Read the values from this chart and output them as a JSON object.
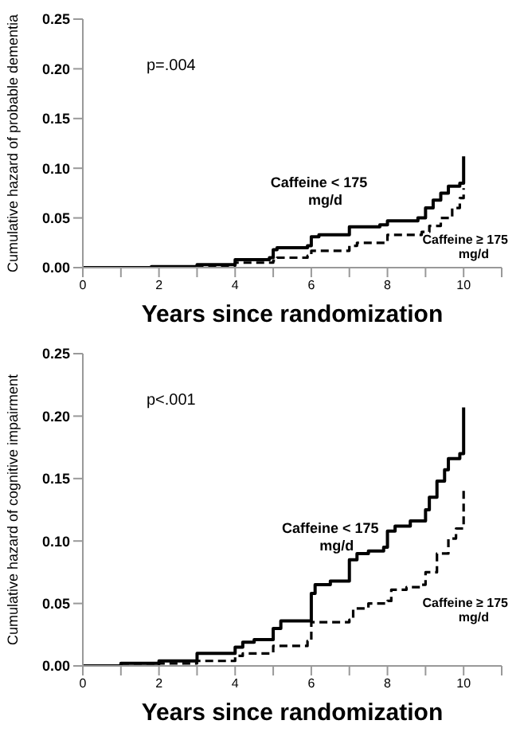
{
  "chart_data": [
    {
      "type": "step",
      "xlabel": "Years  since  randomization",
      "ylabel": "Cumulative hazard of probable dementia",
      "annotations": [
        "p=.004"
      ],
      "xlim": [
        0,
        11
      ],
      "xticks": [
        0,
        {
          "value": 1,
          "label": null
        },
        2,
        {
          "value": 3,
          "label": null
        },
        4,
        {
          "value": 5,
          "label": null
        },
        6,
        {
          "value": 7,
          "label": null
        },
        8,
        {
          "value": 9,
          "label": null
        },
        10,
        {
          "value": 11,
          "label": null
        }
      ],
      "ylim": [
        0,
        0.25
      ],
      "yticks": [
        {
          "value": 0,
          "label": "0.00"
        },
        {
          "value": 0.05,
          "label": "0.05"
        },
        {
          "value": 0.1,
          "label": "0.10"
        },
        {
          "value": 0.15,
          "label": "0.15"
        },
        {
          "value": 0.2,
          "label": "0.20"
        },
        {
          "value": 0.25,
          "label": "0.25"
        }
      ],
      "grid": false,
      "legend": false,
      "marker": "none",
      "series": [
        {
          "name": "Caffeine < 175 mg/d",
          "color": "#000000",
          "line_style": "solid",
          "x": [
            0,
            1.8,
            3,
            4,
            4.9,
            5,
            5.1,
            5.9,
            6,
            6.2,
            7,
            7.8,
            8,
            8.8,
            9,
            9.2,
            9.4,
            9.6,
            9.9,
            10
          ],
          "values": [
            0,
            0.001,
            0.003,
            0.008,
            0.01,
            0.018,
            0.02,
            0.022,
            0.031,
            0.033,
            0.041,
            0.043,
            0.047,
            0.05,
            0.06,
            0.068,
            0.075,
            0.082,
            0.085,
            0.112
          ]
        },
        {
          "name": "Caffeine ≥ 175 mg/d",
          "color": "#000000",
          "line_style": "dashed",
          "x": [
            0,
            3,
            4,
            5,
            5.1,
            5.9,
            6,
            7,
            7.2,
            8,
            8.9,
            9.1,
            9.4,
            9.7,
            9.9,
            10
          ],
          "values": [
            0,
            0.002,
            0.005,
            0.007,
            0.01,
            0.012,
            0.017,
            0.022,
            0.025,
            0.033,
            0.036,
            0.042,
            0.05,
            0.06,
            0.07,
            0.08
          ]
        }
      ]
    },
    {
      "type": "step",
      "xlabel": "Years  since  randomization",
      "ylabel": "Cumulative hazard of cognitive impairment",
      "annotations": [
        "p<.001"
      ],
      "xlim": [
        0,
        11
      ],
      "xticks": [
        0,
        {
          "value": 1,
          "label": null
        },
        2,
        {
          "value": 3,
          "label": null
        },
        4,
        {
          "value": 5,
          "label": null
        },
        6,
        {
          "value": 7,
          "label": null
        },
        8,
        {
          "value": 9,
          "label": null
        },
        10,
        {
          "value": 11,
          "label": null
        }
      ],
      "ylim": [
        0,
        0.25
      ],
      "yticks": [
        {
          "value": 0,
          "label": "0.00"
        },
        {
          "value": 0.05,
          "label": "0.05"
        },
        {
          "value": 0.1,
          "label": "0.10"
        },
        {
          "value": 0.15,
          "label": "0.15"
        },
        {
          "value": 0.2,
          "label": "0.20"
        },
        {
          "value": 0.25,
          "label": "0.25"
        }
      ],
      "grid": false,
      "legend": false,
      "marker": "none",
      "series": [
        {
          "name": "Caffeine < 175 mg/d",
          "color": "#000000",
          "line_style": "solid",
          "x": [
            0,
            1,
            2,
            3,
            4,
            4.2,
            4.5,
            5,
            5.2,
            6,
            6.1,
            6.5,
            7,
            7.2,
            7.5,
            7.9,
            8,
            8.2,
            8.6,
            9,
            9.1,
            9.3,
            9.5,
            9.6,
            9.9,
            10
          ],
          "values": [
            0,
            0.002,
            0.004,
            0.01,
            0.015,
            0.019,
            0.021,
            0.03,
            0.036,
            0.058,
            0.065,
            0.068,
            0.085,
            0.09,
            0.092,
            0.095,
            0.108,
            0.112,
            0.116,
            0.125,
            0.135,
            0.148,
            0.157,
            0.166,
            0.17,
            0.207
          ]
        },
        {
          "name": "Caffeine ≥ 175 mg/d",
          "color": "#000000",
          "line_style": "dashed",
          "x": [
            0,
            2,
            3,
            4,
            4.2,
            5,
            5.9,
            6,
            7,
            7.1,
            7.5,
            8,
            8.1,
            8.5,
            8.9,
            9,
            9.3,
            9.6,
            9.8,
            10
          ],
          "values": [
            0,
            0.002,
            0.004,
            0.008,
            0.01,
            0.016,
            0.02,
            0.035,
            0.037,
            0.046,
            0.05,
            0.052,
            0.061,
            0.063,
            0.065,
            0.075,
            0.09,
            0.102,
            0.11,
            0.143
          ]
        }
      ]
    }
  ]
}
